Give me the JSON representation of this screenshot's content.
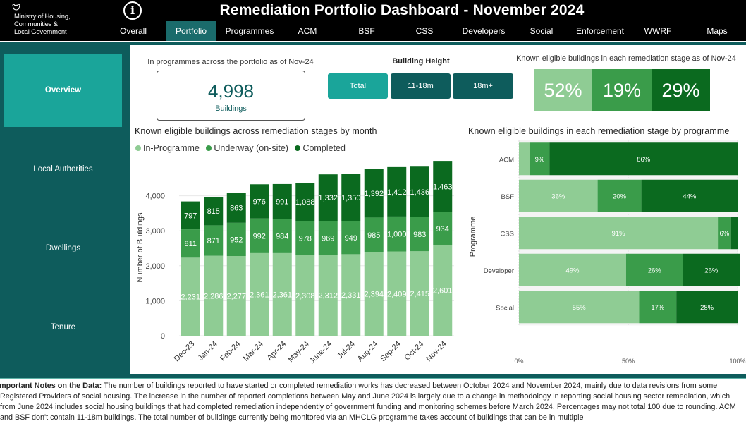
{
  "header": {
    "org_name": "Ministry of Housing,\nCommunities &\nLocal Government",
    "title": "Remediation Portfolio Dashboard - November 2024",
    "info_icon": "info-icon",
    "nav_tabs": [
      {
        "label": "Overall",
        "active": false
      },
      {
        "label": "Portfolio",
        "active": true
      },
      {
        "label": "Programmes",
        "active": false
      },
      {
        "label": "ACM",
        "active": false
      },
      {
        "label": "BSF",
        "active": false
      },
      {
        "label": "CSS",
        "active": false
      },
      {
        "label": "Developers",
        "active": false
      },
      {
        "label": "Social",
        "active": false
      },
      {
        "label": "Enforcement",
        "active": false
      },
      {
        "label": "WWRF",
        "active": false
      },
      {
        "label": "Maps",
        "active": false
      }
    ]
  },
  "sidebar": {
    "items": [
      {
        "label": "Overview",
        "active": true
      },
      {
        "label": "Local Authorities",
        "active": false
      },
      {
        "label": "Dwellings",
        "active": false
      },
      {
        "label": "Tenure",
        "active": false
      }
    ]
  },
  "kpi": {
    "caption": "In programmes across the portfolio as of Nov-24",
    "value": "4,998",
    "unit": "Buildings"
  },
  "building_height": {
    "title": "Building Height",
    "options": [
      {
        "label": "Total",
        "selected": true
      },
      {
        "label": "11-18m",
        "selected": false
      },
      {
        "label": "18m+",
        "selected": false
      }
    ]
  },
  "stages_summary": {
    "caption": "Known eligible buildings in each remediation stage as of Nov-24",
    "values": [
      "52%",
      "19%",
      "29%"
    ]
  },
  "colors": {
    "in_programme": "#8fcc94",
    "underway": "#3a9c4a",
    "completed": "#0b6a1f",
    "teal_dark": "#0e5c5c",
    "teal_light": "#1aa59a"
  },
  "chart_data": [
    {
      "type": "bar",
      "stacked": true,
      "title": "Known eligible buildings across remediation stages by month",
      "ylabel": "Number of Buildings",
      "ylim": [
        0,
        5000
      ],
      "yticks": [
        "0",
        "1,000",
        "2,000",
        "3,000",
        "4,000"
      ],
      "categories": [
        "Dec-23",
        "Jan-24",
        "Feb-24",
        "Mar-24",
        "Apr-24",
        "May-24",
        "June-24",
        "Jul-24",
        "Aug-24",
        "Sep-24",
        "Oct-24",
        "Nov-24"
      ],
      "series": [
        {
          "name": "In-Programme",
          "values": [
            2231,
            2286,
            2277,
            2361,
            2361,
            2308,
            2312,
            2331,
            2394,
            2409,
            2415,
            2601
          ],
          "labels": [
            "2,231",
            "2,286",
            "2,277",
            "2,361",
            "2,361",
            "2,308",
            "2,312",
            "2,331",
            "2,394",
            "2,409",
            "2,415",
            "2,601"
          ]
        },
        {
          "name": "Underway (on-site)",
          "values": [
            811,
            871,
            952,
            992,
            984,
            978,
            969,
            949,
            985,
            1000,
            983,
            934
          ],
          "labels": [
            "811",
            "871",
            "952",
            "992",
            "984",
            "978",
            "969",
            "949",
            "985",
            "1,000",
            "983",
            "934"
          ]
        },
        {
          "name": "Completed",
          "values": [
            797,
            815,
            863,
            976,
            991,
            1088,
            1332,
            1350,
            1392,
            1412,
            1436,
            1463
          ],
          "labels": [
            "797",
            "815",
            "863",
            "976",
            "991",
            "1,088",
            "1,332",
            "1,350",
            "1,392",
            "1,412",
            "1,436",
            "1,463"
          ]
        }
      ],
      "legend": "top-left"
    },
    {
      "type": "bar",
      "orientation": "horizontal",
      "stacked_percent": true,
      "title": "Known eligible buildings in each remediation stage by programme",
      "ylabel": "Programme",
      "xticks": [
        "0%",
        "50%",
        "100%"
      ],
      "categories": [
        "ACM",
        "BSF",
        "CSS",
        "Developer",
        "Social"
      ],
      "series": [
        {
          "name": "In-Programme",
          "values": [
            5,
            36,
            91,
            49,
            55
          ],
          "labels": [
            "",
            "36%",
            "91%",
            "49%",
            "55%"
          ]
        },
        {
          "name": "Underway (on-site)",
          "values": [
            9,
            20,
            6,
            26,
            17
          ],
          "labels": [
            "9%",
            "20%",
            "6%",
            "26%",
            "17%"
          ]
        },
        {
          "name": "Completed",
          "values": [
            86,
            44,
            3,
            26,
            28
          ],
          "labels": [
            "86%",
            "44%",
            "",
            "26%",
            "28%"
          ]
        }
      ]
    }
  ],
  "notes": {
    "heading": "Important Notes on the Data:",
    "text": " The number of buildings reported to have started or completed remediation works has decreased between October 2024 and November 2024, mainly due to data revisions from some Registered Providers of social housing. The increase in the number of reported completions between May and June 2024 is largely due to a change in methodology in reporting social housing sector remediation, which from June 2024 includes social housing buildings that had completed remediation independently of government funding and monitoring schemes before March 2024.  Percentages may not total 100 due to rounding. ACM and BSF don't contain 11-18m buildings. The total number of buildings currently being monitored via an MHCLG programme takes account of buildings that can be in multiple"
  }
}
